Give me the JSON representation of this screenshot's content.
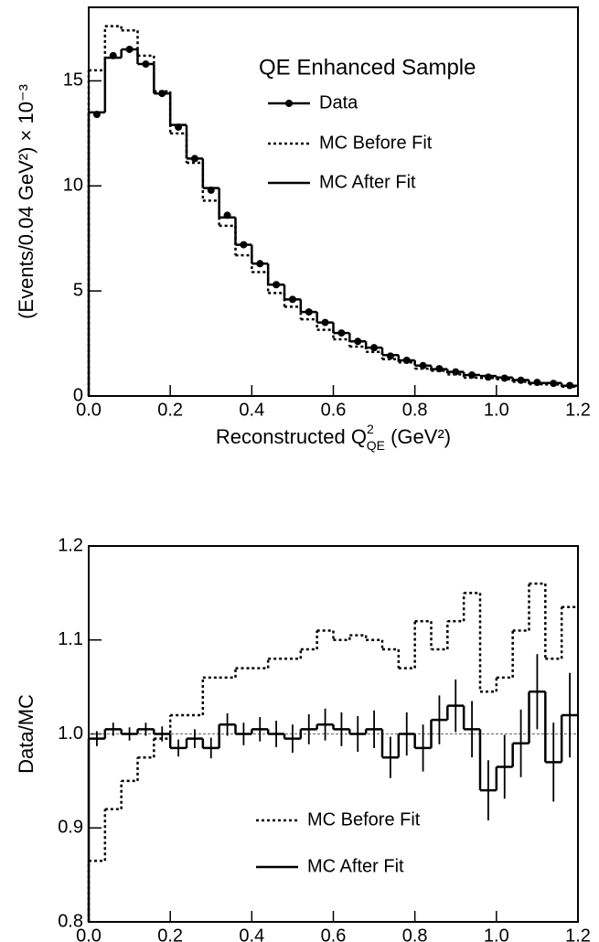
{
  "chart_data": [
    {
      "type": "histogram",
      "annotation": "QE Enhanced Sample",
      "y_label": "(Events/0.04 GeV²) × 10⁻³",
      "x_label": {
        "text": "Reconstructed Q",
        "sup": "2",
        "sub": "QE",
        "rest": " (GeV²)"
      },
      "bins": [
        0,
        0.04,
        0.08,
        0.12,
        0.16,
        0.2,
        0.24,
        0.28,
        0.32,
        0.36,
        0.4,
        0.44,
        0.48,
        0.52,
        0.56,
        0.6,
        0.64,
        0.68,
        0.72,
        0.76,
        0.8,
        0.84,
        0.88,
        0.92,
        0.96,
        1.0,
        1.04,
        1.08,
        1.12,
        1.16,
        1.2
      ],
      "series": [
        {
          "name": "Data",
          "style": "points",
          "color": "#000000",
          "values": [
            13.4,
            16.2,
            16.5,
            15.8,
            14.4,
            12.8,
            11.3,
            9.8,
            8.6,
            7.2,
            6.3,
            5.3,
            4.6,
            4.0,
            3.5,
            3.0,
            2.6,
            2.3,
            1.9,
            1.7,
            1.45,
            1.3,
            1.15,
            1.0,
            0.9,
            0.85,
            0.75,
            0.65,
            0.6,
            0.5
          ]
        },
        {
          "name": "MC Before Fit",
          "style": "dotted",
          "color": "#000000",
          "values": [
            15.5,
            17.6,
            17.4,
            16.2,
            14.5,
            12.5,
            11.1,
            9.3,
            8.1,
            6.7,
            5.9,
            4.9,
            4.25,
            3.65,
            3.15,
            2.7,
            2.35,
            2.1,
            1.75,
            1.6,
            1.3,
            1.2,
            1.03,
            0.87,
            0.86,
            0.8,
            0.68,
            0.56,
            0.55,
            0.44
          ]
        },
        {
          "name": "MC After Fit",
          "style": "solid",
          "color": "#000000",
          "values": [
            13.5,
            16.1,
            16.5,
            15.8,
            14.4,
            12.9,
            11.3,
            9.9,
            8.5,
            7.2,
            6.3,
            5.3,
            4.6,
            4.0,
            3.5,
            3.0,
            2.6,
            2.3,
            1.95,
            1.7,
            1.45,
            1.28,
            1.15,
            1.0,
            0.95,
            0.88,
            0.76,
            0.62,
            0.62,
            0.49
          ]
        }
      ],
      "xlim": [
        0,
        1.2
      ],
      "xticks": [
        {
          "value": 0,
          "label": "0.0"
        },
        0.2,
        0.4,
        0.6,
        0.8,
        {
          "value": 1,
          "label": "1.0"
        },
        1.2
      ],
      "ylim": [
        0,
        18.5
      ],
      "yticks": [
        0,
        5,
        10,
        15
      ]
    },
    {
      "type": "histogram",
      "y_label": "Data/MC",
      "x_label": {
        "text": "Reconstructed Q",
        "sup": "2",
        "sub": "QE",
        "rest": " (GeV²)"
      },
      "reference_line": 1,
      "bins": [
        0,
        0.04,
        0.08,
        0.12,
        0.16,
        0.2,
        0.24,
        0.28,
        0.32,
        0.36,
        0.4,
        0.44,
        0.48,
        0.52,
        0.56,
        0.6,
        0.64,
        0.68,
        0.72,
        0.76,
        0.8,
        0.84,
        0.88,
        0.92,
        0.96,
        1.0,
        1.04,
        1.08,
        1.12,
        1.16,
        1.2
      ],
      "series": [
        {
          "name": "MC Before Fit",
          "style": "dotted",
          "color": "#000000",
          "values": [
            0.865,
            0.92,
            0.95,
            0.975,
            0.995,
            1.02,
            1.02,
            1.06,
            1.06,
            1.07,
            1.07,
            1.08,
            1.08,
            1.09,
            1.11,
            1.1,
            1.105,
            1.1,
            1.09,
            1.07,
            1.12,
            1.09,
            1.12,
            1.15,
            1.045,
            1.06,
            1.11,
            1.16,
            1.08,
            1.135
          ]
        },
        {
          "name": "MC After Fit",
          "style": "solid",
          "color": "#000000",
          "values": [
            0.995,
            1.005,
            1.0,
            1.005,
            1.0,
            0.985,
            0.995,
            0.985,
            1.01,
            1.0,
            1.005,
            1.0,
            0.995,
            1.005,
            1.01,
            1.005,
            1.0,
            1.005,
            0.975,
            1.0,
            0.985,
            1.015,
            1.03,
            1.005,
            0.94,
            0.965,
            0.99,
            1.045,
            0.97,
            1.02
          ],
          "errors": [
            0.008,
            0.007,
            0.007,
            0.007,
            0.008,
            0.009,
            0.01,
            0.011,
            0.012,
            0.012,
            0.013,
            0.014,
            0.015,
            0.016,
            0.017,
            0.018,
            0.019,
            0.02,
            0.022,
            0.023,
            0.025,
            0.026,
            0.028,
            0.03,
            0.032,
            0.034,
            0.036,
            0.04,
            0.042,
            0.045
          ]
        }
      ],
      "xlim": [
        0,
        1.2
      ],
      "xticks": [
        {
          "value": 0,
          "label": "0.0"
        },
        0.2,
        0.4,
        0.6,
        0.8,
        {
          "value": 1,
          "label": "1.0"
        },
        1.2
      ],
      "ylim": [
        0.8,
        1.2
      ],
      "yticks": [
        0.8,
        0.9,
        {
          "value": 1,
          "label": "1.0"
        },
        1.1,
        1.2
      ]
    }
  ]
}
